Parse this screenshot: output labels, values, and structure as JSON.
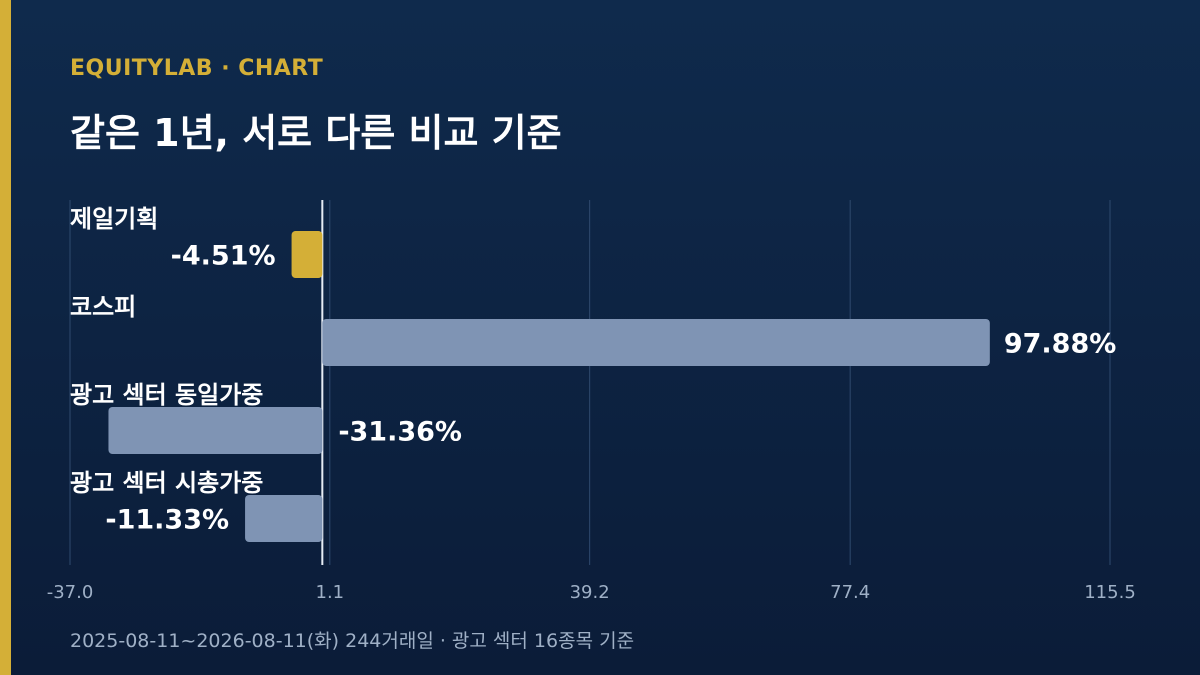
{
  "header": {
    "brand": "EQUITYLAB · CHART",
    "title": "같은 1년, 서로 다른 비교 기준"
  },
  "footer": {
    "note": "2025-08-11~2026-08-11(화) 244거래일 · 광고 섹터 16종목 기준"
  },
  "colors": {
    "background": "#0b1c38",
    "accent": "#d4af37",
    "bar_default": "#7f94b4",
    "bar_highlight": "#d4af37",
    "text": "#ffffff",
    "axis_text": "#9fb0c6"
  },
  "chart_data": {
    "type": "bar",
    "orientation": "horizontal",
    "categories": [
      "제일기획",
      "코스피",
      "광고 섹터 동일가중",
      "광고 섹터 시총가중"
    ],
    "values": [
      -4.51,
      97.88,
      -31.36,
      -11.33
    ],
    "value_labels": [
      "-4.51%",
      "97.88%",
      "-31.36%",
      "-11.33%"
    ],
    "highlight": "제일기획",
    "xlim": [
      -37.0,
      115.5
    ],
    "xticks": [
      -37.0,
      1.1,
      39.2,
      77.4,
      115.5
    ],
    "xtick_labels": [
      "-37.0",
      "1.1",
      "39.2",
      "77.4",
      "115.5"
    ],
    "baseline": 0,
    "grid": true,
    "unit": "%"
  }
}
